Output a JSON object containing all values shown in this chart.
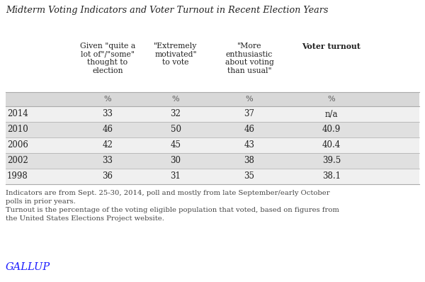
{
  "title": "Midterm Voting Indicators and Voter Turnout in Recent Election Years",
  "col_headers": [
    "Given \"quite a\nlot of\"/\"some\"\nthought to\nelection",
    "\"Extremely\nmotivated\"\nto vote",
    "\"More\nenthusiastic\nabout voting\nthan usual\"",
    "Voter turnout"
  ],
  "pct_row": [
    "%",
    "%",
    "%",
    "%"
  ],
  "years": [
    "2014",
    "2010",
    "2006",
    "2002",
    "1998"
  ],
  "col1": [
    "33",
    "46",
    "42",
    "33",
    "36"
  ],
  "col2": [
    "32",
    "50",
    "45",
    "30",
    "31"
  ],
  "col3": [
    "37",
    "46",
    "43",
    "38",
    "35"
  ],
  "col4": [
    "n/a",
    "40.9",
    "40.4",
    "39.5",
    "38.1"
  ],
  "footnote_lines": [
    "Indicators are from Sept. 25-30, 2014, poll and mostly from late September/early October",
    "polls in prior years.",
    "Turnout is the percentage of the voting eligible population that voted, based on figures from",
    "the United States Elections Project website."
  ],
  "gallup_label": "GALLUP",
  "row_light": "#f0f0f0",
  "row_dark": "#e0e0e0",
  "pct_bg": "#d8d8d8",
  "title_color": "#222222",
  "text_color": "#222222",
  "gallup_color": "#1a1aff"
}
